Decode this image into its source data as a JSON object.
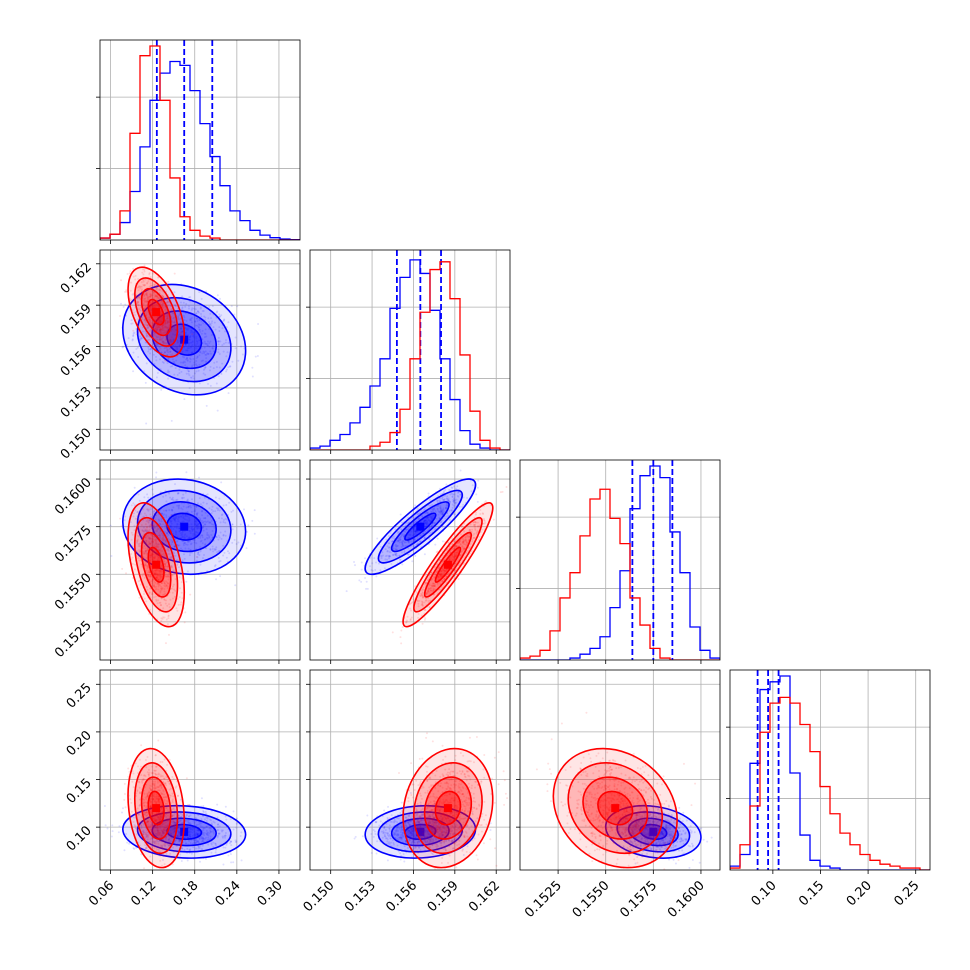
{
  "colors": {
    "series_a": "#0000ff",
    "series_b": "#ff0000",
    "grid": "#b0b0b0"
  },
  "chart_data": {
    "type": "corner",
    "grid": true,
    "params": [
      {
        "range": [
          0.045,
          0.33
        ],
        "ticks": [
          0.06,
          0.12,
          0.18,
          0.24,
          0.3
        ],
        "tick_labels": [
          "0.06",
          "0.12",
          "0.18",
          "0.24",
          "0.30"
        ]
      },
      {
        "range": [
          0.1485,
          0.163
        ],
        "ticks": [
          0.15,
          0.153,
          0.156,
          0.159,
          0.162
        ],
        "tick_labels": [
          "0.150",
          "0.153",
          "0.156",
          "0.159",
          "0.162"
        ]
      },
      {
        "range": [
          0.1505,
          0.161
        ],
        "ticks": [
          0.1525,
          0.155,
          0.1575,
          0.16
        ],
        "tick_labels": [
          "0.1525",
          "0.1550",
          "0.1575",
          "0.1600"
        ]
      },
      {
        "range": [
          0.055,
          0.265
        ],
        "ticks": [
          0.1,
          0.15,
          0.2,
          0.25
        ],
        "tick_labels": [
          "0.10",
          "0.15",
          "0.20",
          "0.25"
        ]
      }
    ],
    "series": [
      {
        "color": "#0000ff",
        "means": [
          0.165,
          0.1565,
          0.1575,
          0.095
        ],
        "sds": [
          0.035,
          0.0016,
          0.001,
          0.011
        ],
        "quantiles": [
          [
            0.126,
            0.165,
            0.205
          ],
          [
            0.1548,
            0.1565,
            0.158
          ],
          [
            0.1564,
            0.1575,
            0.1585
          ],
          [
            0.084,
            0.095,
            0.106
          ]
        ],
        "hist_shapes": [
          [
            0.01,
            0.03,
            0.09,
            0.25,
            0.48,
            0.72,
            0.86,
            0.92,
            0.9,
            0.77,
            0.6,
            0.43,
            0.28,
            0.15,
            0.1,
            0.05,
            0.025,
            0.012,
            0.005,
            0.002
          ],
          [
            0.01,
            0.02,
            0.05,
            0.08,
            0.14,
            0.22,
            0.33,
            0.47,
            0.73,
            0.89,
            0.98,
            0.91,
            0.72,
            0.47,
            0.26,
            0.1,
            0.03,
            0.01,
            0,
            0
          ],
          [
            0,
            0,
            0,
            0,
            0,
            0.01,
            0.03,
            0.06,
            0.12,
            0.27,
            0.46,
            0.78,
            0.95,
            1.0,
            0.94,
            0.66,
            0.45,
            0.17,
            0.05,
            0.01
          ],
          [
            0.02,
            0.08,
            0.55,
            0.93,
            0.97,
            1.0,
            0.5,
            0.18,
            0.05,
            0.02,
            0.01,
            0,
            0,
            0,
            0,
            0,
            0,
            0,
            0,
            0
          ]
        ],
        "correlations": [
          [
            0,
            1,
            -0.2
          ],
          [
            0,
            2,
            -0.1
          ],
          [
            0,
            3,
            -0.1
          ],
          [
            1,
            2,
            0.88
          ],
          [
            1,
            3,
            0.1
          ],
          [
            2,
            3,
            -0.2
          ]
        ]
      },
      {
        "color": "#ff0000",
        "means": [
          0.125,
          0.1585,
          0.1555,
          0.12
        ],
        "sds": [
          0.016,
          0.0013,
          0.0013,
          0.025
        ],
        "quantiles": [],
        "hist_shapes": [
          [
            0.01,
            0.03,
            0.15,
            0.55,
            0.95,
            1.0,
            0.72,
            0.32,
            0.12,
            0.05,
            0.02,
            0.01,
            0,
            0,
            0,
            0,
            0,
            0,
            0,
            0
          ],
          [
            0,
            0,
            0,
            0,
            0,
            0,
            0.02,
            0.04,
            0.09,
            0.21,
            0.47,
            0.71,
            0.93,
            0.97,
            0.78,
            0.49,
            0.2,
            0.05,
            0.01,
            0
          ],
          [
            0.01,
            0.02,
            0.05,
            0.15,
            0.32,
            0.45,
            0.64,
            0.83,
            0.88,
            0.73,
            0.6,
            0.32,
            0.18,
            0.06,
            0.01,
            0,
            0,
            0,
            0,
            0
          ],
          [
            0.01,
            0.13,
            0.33,
            0.71,
            0.86,
            0.89,
            0.86,
            0.75,
            0.61,
            0.43,
            0.29,
            0.19,
            0.13,
            0.08,
            0.05,
            0.03,
            0.02,
            0.01,
            0.01,
            0
          ]
        ],
        "correlations": [
          [
            0,
            1,
            -0.5
          ],
          [
            0,
            2,
            -0.45
          ],
          [
            0,
            3,
            -0.2
          ],
          [
            1,
            2,
            0.92
          ],
          [
            1,
            3,
            0.15
          ],
          [
            2,
            3,
            -0.2
          ]
        ]
      }
    ]
  }
}
